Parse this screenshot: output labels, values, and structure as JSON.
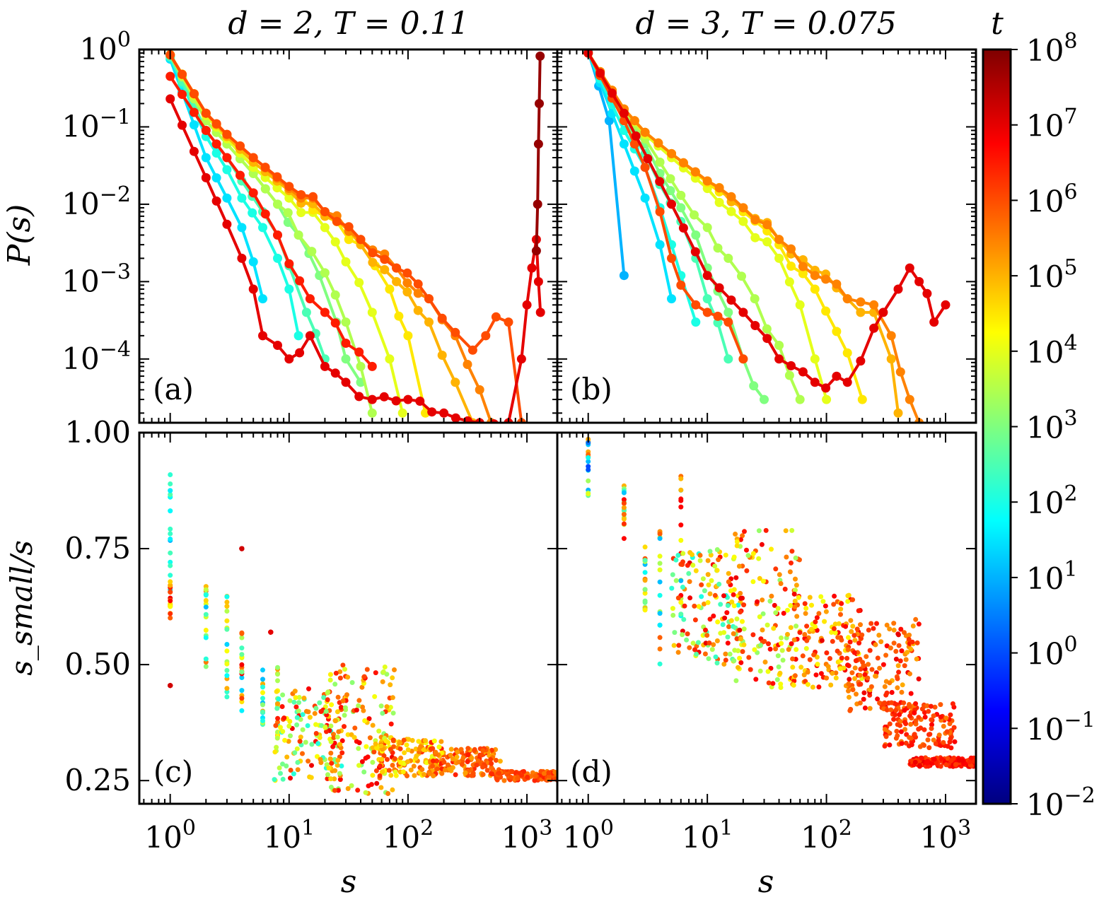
{
  "figure": {
    "titles": {
      "left": "d = 2, T = 0.11",
      "right": "d = 3, T = 0.075"
    },
    "x_label": "s",
    "y_label_top": "P(s)",
    "y_label_bottom": "s_small/s",
    "panel_labels": [
      "(a)",
      "(b)",
      "(c)",
      "(d)"
    ]
  },
  "colorbar": {
    "label": "t",
    "scale": "log",
    "range_exp": [
      -2,
      8
    ],
    "tick_exponents": [
      "8",
      "7",
      "6",
      "5",
      "4",
      "3",
      "2",
      "1",
      "0",
      "−1",
      "−2"
    ],
    "colormap": [
      "#00007f",
      "#0000ff",
      "#007fff",
      "#00ffff",
      "#7fff7f",
      "#ffff00",
      "#ff7f00",
      "#ff0000",
      "#7f0000"
    ]
  },
  "chart_data": [
    {
      "panel": "(a)",
      "type": "line",
      "xscale": "log",
      "yscale": "log",
      "xlim": [
        0.55,
        1800
      ],
      "ylim": [
        1.5e-05,
        1.0
      ],
      "xticks": [
        "1",
        "10",
        "100",
        "1000"
      ],
      "xtick_labels_shown": false,
      "yticks": [
        "0",
        "−1",
        "−2",
        "−3",
        "−4"
      ],
      "ytick_labels_shown": true,
      "series": [
        {
          "t": 30,
          "x": [
            1,
            2,
            3,
            4,
            5,
            6
          ],
          "y": [
            0.75,
            0.04,
            0.012,
            0.005,
            0.0018,
            0.0006
          ]
        },
        {
          "t": 100,
          "x": [
            1,
            2,
            3,
            4,
            6,
            8,
            10,
            12
          ],
          "y": [
            0.8,
            0.075,
            0.028,
            0.012,
            0.005,
            0.002,
            0.0008,
            0.0002
          ]
        },
        {
          "t": 300,
          "x": [
            1,
            2,
            3,
            4,
            6,
            8,
            10,
            14,
            20
          ],
          "y": [
            0.8,
            0.09,
            0.04,
            0.02,
            0.008,
            0.004,
            0.0016,
            0.0004,
            0.0001
          ]
        },
        {
          "t": 1000,
          "x": [
            1,
            2,
            3,
            5,
            8,
            12,
            18,
            25,
            30,
            40
          ],
          "y": [
            0.85,
            0.12,
            0.06,
            0.025,
            0.01,
            0.004,
            0.0012,
            0.0003,
            0.0001,
            5e-05
          ]
        },
        {
          "t": 3000,
          "x": [
            1,
            2,
            3,
            5,
            8,
            12,
            20,
            30,
            40,
            50
          ],
          "y": [
            0.85,
            0.12,
            0.06,
            0.025,
            0.01,
            0.004,
            0.0013,
            0.0003,
            8e-05,
            2e-05
          ]
        },
        {
          "t": 10000,
          "x": [
            1,
            2,
            3,
            5,
            10,
            20,
            30,
            50,
            70,
            90
          ],
          "y": [
            0.85,
            0.14,
            0.07,
            0.03,
            0.012,
            0.005,
            0.0018,
            0.0004,
            0.0001,
            2e-05
          ]
        },
        {
          "t": 30000,
          "x": [
            1,
            2,
            3,
            5,
            10,
            20,
            40,
            70,
            100,
            140
          ],
          "y": [
            0.86,
            0.15,
            0.075,
            0.035,
            0.015,
            0.007,
            0.003,
            0.0008,
            0.0002,
            2e-05
          ]
        },
        {
          "t": 100000,
          "x": [
            1,
            2,
            3,
            5,
            10,
            20,
            40,
            80,
            150,
            250,
            350
          ],
          "y": [
            0.85,
            0.15,
            0.075,
            0.035,
            0.015,
            0.007,
            0.003,
            0.001,
            0.0003,
            5e-05,
            1.5e-05
          ]
        },
        {
          "t": 300000,
          "x": [
            1,
            2,
            3,
            5,
            10,
            20,
            40,
            80,
            150,
            250,
            400,
            500
          ],
          "y": [
            0.85,
            0.15,
            0.08,
            0.04,
            0.016,
            0.008,
            0.0035,
            0.0015,
            0.0006,
            0.0002,
            4e-05,
            1.5e-05
          ]
        },
        {
          "t": 1000000,
          "x": [
            1,
            2,
            3,
            5,
            10,
            20,
            40,
            80,
            150,
            250,
            350,
            450,
            550,
            700,
            900
          ],
          "y": [
            0.85,
            0.15,
            0.08,
            0.04,
            0.017,
            0.008,
            0.0035,
            0.0015,
            0.0006,
            0.00022,
            0.00013,
            0.0002,
            0.00035,
            0.0003,
            1.5e-05
          ]
        },
        {
          "t": 3000000,
          "x": [
            1,
            2,
            3,
            5,
            8,
            10,
            15,
            20,
            30,
            50
          ],
          "y": [
            0.45,
            0.09,
            0.04,
            0.014,
            0.004,
            0.0017,
            0.0006,
            0.0004,
            0.00016,
            8e-05
          ]
        },
        {
          "t": 10000000,
          "x": [
            1,
            2,
            3,
            4,
            5,
            6,
            8,
            10,
            15,
            20,
            30,
            50,
            100,
            200,
            400,
            700,
            900,
            1000,
            1100,
            1200,
            1250,
            1300
          ],
          "y": [
            0.23,
            0.022,
            0.0055,
            0.002,
            0.0008,
            0.0002,
            0.00015,
            0.0001,
            0.0002,
            8e-05,
            5e-05,
            3e-05,
            3e-05,
            2e-05,
            1.5e-05,
            1.5e-05,
            0.0001,
            0.0005,
            0.0015,
            0.0035,
            0.001,
            0.0004
          ]
        },
        {
          "t": 60000000,
          "x": [
            1200,
            1230,
            1250,
            1270,
            1290
          ],
          "y": [
            0.0025,
            0.01,
            0.06,
            0.2,
            0.82
          ]
        }
      ]
    },
    {
      "panel": "(b)",
      "type": "line",
      "xscale": "log",
      "yscale": "log",
      "xlim": [
        0.55,
        1800
      ],
      "ylim": [
        1.5e-05,
        1.0
      ],
      "xticks": [
        "1",
        "10",
        "100",
        "1000"
      ],
      "xtick_labels_shown": false,
      "yticks": [
        "0",
        "−1",
        "−2",
        "−3",
        "−4"
      ],
      "ytick_labels_shown": false,
      "series": [
        {
          "t": 10,
          "x": [
            1,
            1.5,
            2
          ],
          "y": [
            0.95,
            0.12,
            0.0012
          ]
        },
        {
          "t": 30,
          "x": [
            1,
            2,
            3,
            4,
            5
          ],
          "y": [
            0.92,
            0.06,
            0.012,
            0.003,
            0.0006
          ]
        },
        {
          "t": 100,
          "x": [
            1,
            2,
            3,
            4,
            5,
            6,
            8
          ],
          "y": [
            0.9,
            0.09,
            0.03,
            0.009,
            0.003,
            0.0012,
            0.0003
          ]
        },
        {
          "t": 300,
          "x": [
            1,
            2,
            3,
            4,
            6,
            8,
            10,
            15
          ],
          "y": [
            0.9,
            0.12,
            0.045,
            0.018,
            0.006,
            0.002,
            0.0006,
            0.0001
          ]
        },
        {
          "t": 1000,
          "x": [
            1,
            2,
            3,
            4,
            6,
            8,
            10,
            15,
            20,
            30
          ],
          "y": [
            0.9,
            0.14,
            0.06,
            0.025,
            0.009,
            0.004,
            0.0015,
            0.0004,
            0.0001,
            3e-05
          ]
        },
        {
          "t": 3000,
          "x": [
            1,
            2,
            3,
            4,
            6,
            10,
            15,
            25,
            40,
            60
          ],
          "y": [
            0.9,
            0.16,
            0.07,
            0.035,
            0.013,
            0.005,
            0.002,
            0.0006,
            0.00015,
            3e-05
          ]
        },
        {
          "t": 10000,
          "x": [
            1,
            2,
            3,
            5,
            10,
            20,
            40,
            60,
            80,
            100
          ],
          "y": [
            0.9,
            0.17,
            0.08,
            0.04,
            0.016,
            0.006,
            0.002,
            0.0005,
            0.0001,
            3e-05
          ]
        },
        {
          "t": 30000,
          "x": [
            1,
            2,
            3,
            5,
            10,
            20,
            40,
            80,
            150,
            200
          ],
          "y": [
            0.9,
            0.17,
            0.085,
            0.045,
            0.019,
            0.008,
            0.003,
            0.0008,
            0.00012,
            3e-05
          ]
        },
        {
          "t": 100000,
          "x": [
            1,
            2,
            3,
            5,
            10,
            20,
            40,
            80,
            150,
            250,
            350,
            400
          ],
          "y": [
            0.9,
            0.17,
            0.085,
            0.045,
            0.02,
            0.009,
            0.0035,
            0.0014,
            0.0006,
            0.0004,
            0.0001,
            2e-05
          ]
        },
        {
          "t": 300000,
          "x": [
            1,
            2,
            3,
            5,
            10,
            20,
            40,
            80,
            150,
            250,
            350,
            500,
            600
          ],
          "y": [
            0.9,
            0.17,
            0.085,
            0.045,
            0.02,
            0.009,
            0.0035,
            0.0012,
            0.0006,
            0.0005,
            0.0002,
            3e-05,
            1.5e-05
          ]
        },
        {
          "t": 1000000,
          "x": [
            1,
            2,
            3,
            4,
            5,
            6,
            8,
            10,
            15,
            20
          ],
          "y": [
            0.9,
            0.12,
            0.03,
            0.008,
            0.002,
            0.0009,
            0.0005,
            0.0004,
            0.0003,
            0.0001
          ]
        },
        {
          "t": 10000000,
          "x": [
            1,
            2,
            5,
            10,
            20,
            40,
            80,
            150,
            250,
            300,
            400,
            500,
            600,
            700,
            800,
            1000
          ],
          "y": [
            0.9,
            0.15,
            0.01,
            0.0012,
            0.0004,
            0.0001,
            5e-05,
            5e-05,
            0.00025,
            0.0004,
            0.0008,
            0.0015,
            0.001,
            0.0007,
            0.0003,
            0.0005
          ]
        }
      ]
    },
    {
      "panel": "(c)",
      "type": "scatter",
      "xscale": "log",
      "yscale": "linear",
      "xlim": [
        0.55,
        1800
      ],
      "ylim": [
        0.2,
        1.0
      ],
      "xticks": [
        "0",
        "1",
        "2",
        "3"
      ],
      "xtick_labels_shown": true,
      "yticks": [
        "1.00",
        "0.75",
        "0.50",
        "0.25"
      ],
      "ytick_labels_shown": true,
      "clusters": [
        {
          "x": 1,
          "y": [
            0.66,
            0.91
          ],
          "t_exp": [
            1,
            3
          ]
        },
        {
          "x": 1,
          "y": [
            0.6,
            0.68
          ],
          "t_exp": [
            4,
            7
          ]
        },
        {
          "x": 1,
          "y": [
            0.455,
            0.455
          ],
          "t_exp": [
            7.2,
            7.2
          ]
        },
        {
          "x": 2,
          "y": [
            0.49,
            0.67
          ],
          "t_exp": [
            1,
            6
          ]
        },
        {
          "x": 3,
          "y": [
            0.42,
            0.67
          ],
          "t_exp": [
            1,
            6
          ]
        },
        {
          "x": 4,
          "y": [
            0.4,
            0.57
          ],
          "t_exp": [
            1,
            7
          ]
        },
        {
          "x": 4,
          "y": [
            0.75,
            0.75
          ],
          "t_exp": [
            7.2,
            7.2
          ]
        },
        {
          "x": 6,
          "y": [
            0.36,
            0.5
          ],
          "t_exp": [
            1,
            6
          ]
        },
        {
          "x": 8,
          "y": [
            0.34,
            0.5
          ],
          "t_exp": [
            2,
            6
          ]
        },
        {
          "x": 7,
          "y": [
            0.57,
            0.57
          ],
          "t_exp": [
            7,
            7
          ]
        },
        {
          "x": 15,
          "y": [
            0.25,
            0.45
          ],
          "t_exp": [
            2,
            7
          ]
        },
        {
          "x": 40,
          "y": [
            0.22,
            0.5
          ],
          "t_exp": [
            3,
            7
          ]
        },
        {
          "x": 100,
          "y": [
            0.26,
            0.34
          ],
          "t_exp": [
            4,
            6.5
          ]
        },
        {
          "x": 300,
          "y": [
            0.26,
            0.32
          ],
          "t_exp": [
            5,
            6.5
          ]
        },
        {
          "x": 1000,
          "y": [
            0.25,
            0.27
          ],
          "t_exp": [
            5.5,
            6.5
          ]
        }
      ]
    },
    {
      "panel": "(d)",
      "type": "scatter",
      "xscale": "log",
      "yscale": "linear",
      "xlim": [
        0.55,
        1800
      ],
      "ylim": [
        0.2,
        1.0
      ],
      "xticks": [
        "0",
        "1",
        "2",
        "3"
      ],
      "xtick_labels_shown": true,
      "yticks": [
        "1.00",
        "0.75",
        "0.50",
        "0.25"
      ],
      "ytick_labels_shown": false,
      "clusters": [
        {
          "x": 1,
          "y": [
            0.85,
            0.99
          ],
          "t_exp": [
            -0.5,
            6
          ]
        },
        {
          "x": 2,
          "y": [
            0.77,
            0.89
          ],
          "t_exp": [
            1,
            7
          ]
        },
        {
          "x": 3,
          "y": [
            0.61,
            0.76
          ],
          "t_exp": [
            1,
            6
          ]
        },
        {
          "x": 4,
          "y": [
            0.5,
            0.81
          ],
          "t_exp": [
            1,
            6
          ]
        },
        {
          "x": 6,
          "y": [
            0.6,
            0.92
          ],
          "t_exp": [
            1,
            7
          ]
        },
        {
          "x": 10,
          "y": [
            0.5,
            0.75
          ],
          "t_exp": [
            2,
            7
          ]
        },
        {
          "x": 30,
          "y": [
            0.45,
            0.79
          ],
          "t_exp": [
            3,
            7
          ]
        },
        {
          "x": 100,
          "y": [
            0.45,
            0.65
          ],
          "t_exp": [
            4,
            7
          ]
        },
        {
          "x": 300,
          "y": [
            0.4,
            0.6
          ],
          "t_exp": [
            5,
            7
          ]
        },
        {
          "x": 600,
          "y": [
            0.32,
            0.42
          ],
          "t_exp": [
            5.5,
            6.8
          ]
        },
        {
          "x": 1000,
          "y": [
            0.28,
            0.3
          ],
          "t_exp": [
            6,
            7
          ]
        }
      ]
    }
  ]
}
